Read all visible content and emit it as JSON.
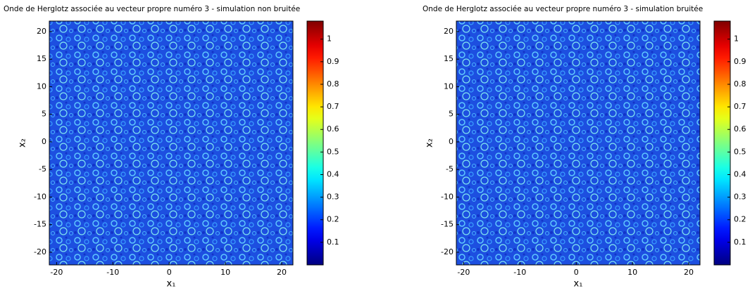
{
  "chart_data": [
    {
      "type": "heatmap",
      "title": "Onde de Herglotz associée au vecteur propre numéro 3 - simulation non bruitée",
      "x_label": "x₁",
      "y_label": "x₂",
      "xlim": [
        -21.3,
        22
      ],
      "ylim": [
        -22.3,
        21.9
      ],
      "xticks": [
        -20,
        -10,
        0,
        10,
        20
      ],
      "yticks": [
        -20,
        -15,
        -10,
        -5,
        0,
        5,
        10,
        15,
        20
      ],
      "colormap": "jet",
      "clim": [
        0,
        1.08
      ],
      "cticks": [
        0.1,
        0.2,
        0.3,
        0.4,
        0.5,
        0.6,
        0.7,
        0.8,
        0.9,
        1
      ]
    },
    {
      "type": "heatmap",
      "title": "Onde de Herglotz associée au vecteur propre numéro 3 - simulation bruitée",
      "x_label": "x₁",
      "y_label": "x₂",
      "xlim": [
        -21.3,
        22
      ],
      "ylim": [
        -22.3,
        21.9
      ],
      "xticks": [
        -20,
        -10,
        0,
        10,
        20
      ],
      "yticks": [
        -20,
        -15,
        -10,
        -5,
        0,
        5,
        10,
        15,
        20
      ],
      "colormap": "jet",
      "clim": [
        0,
        1.08
      ],
      "cticks": [
        0.1,
        0.2,
        0.3,
        0.4,
        0.5,
        0.6,
        0.7,
        0.8,
        0.9,
        1
      ]
    }
  ]
}
